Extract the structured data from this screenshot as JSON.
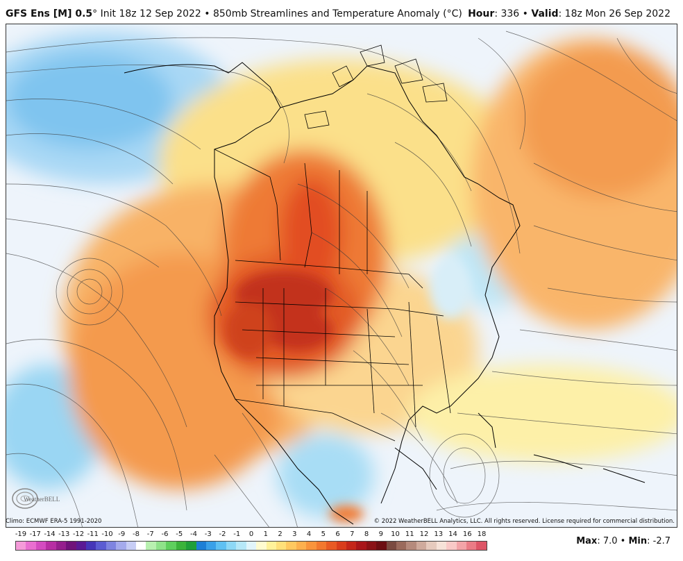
{
  "header": {
    "model": "GFS Ens [M] 0.5",
    "degree": "°",
    "init": "Init 18z 12 Sep 2022",
    "sep": "•",
    "product": "850mb Streamlines and Temperature Anomaly (°C)",
    "hour_label": "Hour",
    "hour_value": ": 336",
    "valid_label": "Valid",
    "valid_value": ": 18z Mon 26 Sep 2022"
  },
  "footer": {
    "climo": "Climo: ECMWF ERA-5 1991-2020",
    "copyright": "© 2022 WeatherBELL Analytics, LLC. All rights reserved. License required for commercial distribution."
  },
  "logo": {
    "text": "WeatherBELL",
    "icon": "weatherbell-swirl-icon"
  },
  "colorbar": {
    "ticks": [
      "-19",
      "-17",
      "-14",
      "-13",
      "-12",
      "-11",
      "-10",
      "-9",
      "-8",
      "-7",
      "-6",
      "-5",
      "-4",
      "-3",
      "-2",
      "-1",
      "0",
      "1",
      "2",
      "3",
      "4",
      "5",
      "6",
      "7",
      "8",
      "9",
      "10",
      "11",
      "12",
      "13",
      "14",
      "16",
      "18"
    ],
    "colors": [
      "#f59bd9",
      "#e96fd0",
      "#d44cc0",
      "#b72ea3",
      "#951f8d",
      "#70137a",
      "#5a1a94",
      "#4536b8",
      "#5b5cd2",
      "#7e84e0",
      "#a4aaec",
      "#c7cdf5",
      "#ffffff",
      "#b8f0b0",
      "#8fe28a",
      "#5fcf5e",
      "#3bb33b",
      "#1f9f3a",
      "#1d7fd6",
      "#3aa0e8",
      "#5fc0f2",
      "#8dd8f6",
      "#b6e8f8",
      "#e1f5fb",
      "#fffcd0",
      "#fff29a",
      "#ffe07a",
      "#ffc860",
      "#fdb04e",
      "#f9943c",
      "#f2782f",
      "#e85a24",
      "#d93d1c",
      "#c4261a",
      "#a8161a",
      "#8a1216",
      "#6c0e12",
      "#7a4a40",
      "#9a6a5c",
      "#b58a7c",
      "#cfaa9c",
      "#e6cabd",
      "#f6e2d8",
      "#f9c9c7",
      "#f3a4a8",
      "#ea7c86",
      "#dd5566"
    ]
  },
  "stats": {
    "max_label": "Max",
    "max_value": ": 7.0",
    "sep": "•",
    "min_label": "Min",
    "min_value": ": -2.7"
  },
  "map": {
    "region": "North America",
    "field": "850mb Temperature Anomaly"
  }
}
